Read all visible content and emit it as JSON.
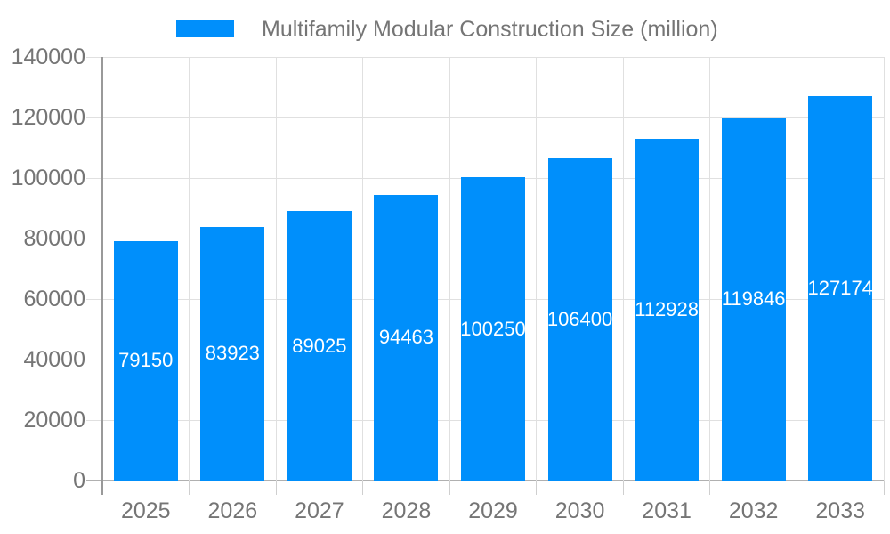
{
  "chart_data": {
    "type": "bar",
    "title": "Multifamily Modular Construction Size (million)",
    "legend": {
      "position": "top",
      "label": "Multifamily Modular Construction Size (million)"
    },
    "categories": [
      "2025",
      "2026",
      "2027",
      "2028",
      "2029",
      "2030",
      "2031",
      "2032",
      "2033"
    ],
    "series": [
      {
        "name": "Multifamily Modular Construction Size (million)",
        "values": [
          79150,
          83923,
          89025,
          94463,
          100250,
          106400,
          112928,
          119846,
          127174
        ]
      }
    ],
    "xlabel": "",
    "ylabel": "",
    "ylim": [
      0,
      140000
    ],
    "y_ticks": [
      0,
      20000,
      40000,
      60000,
      80000,
      100000,
      120000,
      140000
    ],
    "grid": true,
    "bar_value_labels_inside": true,
    "colors": {
      "bar": "#008ffb",
      "bar_label_text": "#ffffff",
      "axis_text": "#757575",
      "title_text": "#757575",
      "gridline": "#e0e0e0",
      "x_tick": "#cfcfcf",
      "axis_line": "#999999",
      "baseline": "#b0b0b0"
    }
  }
}
